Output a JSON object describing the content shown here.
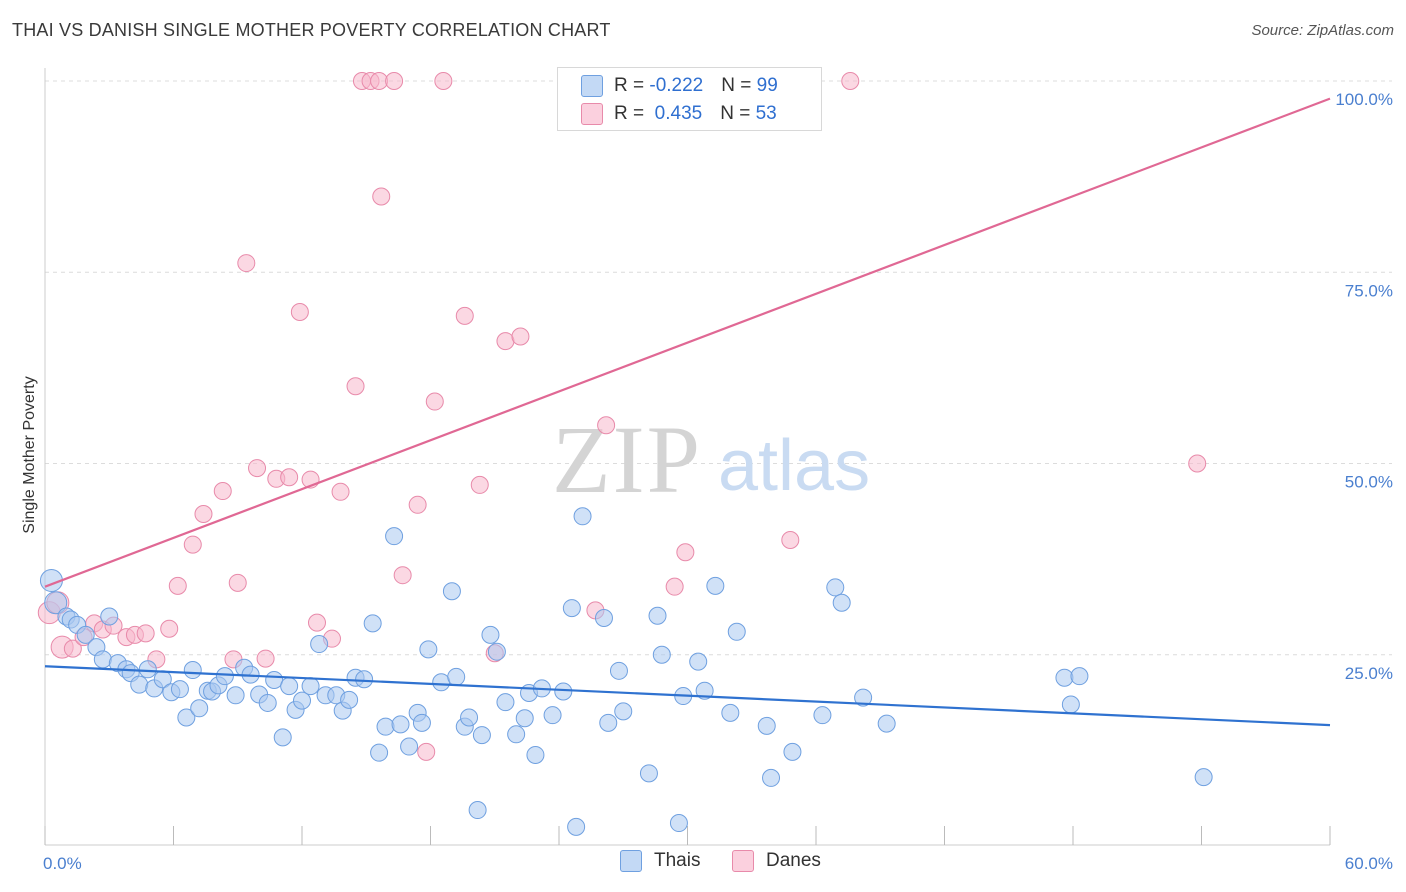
{
  "header": {
    "title": "THAI VS DANISH SINGLE MOTHER POVERTY CORRELATION CHART",
    "source": "Source: ZipAtlas.com"
  },
  "watermark": {
    "zip": "ZIP",
    "atlas": "atlas"
  },
  "legend": {
    "rows": [
      {
        "r_label": "R = ",
        "r_value": "-0.222",
        "n_label": "N = ",
        "n_value": "99",
        "color": "#a9c8f0"
      },
      {
        "r_label": "R = ",
        "r_value": " 0.435",
        "n_label": "N = ",
        "n_value": "53",
        "color": "#f7b8cc"
      }
    ]
  },
  "bottom_legend": {
    "thais": "Thais",
    "danes": "Danes"
  },
  "chart_data": {
    "type": "scatter",
    "title": "THAI VS DANISH SINGLE MOTHER POVERTY CORRELATION CHART",
    "xlabel": "",
    "ylabel": "Single Mother Poverty",
    "xlim": [
      0,
      60
    ],
    "ylim": [
      0,
      100
    ],
    "x_tick_labels": [
      "0.0%",
      "60.0%"
    ],
    "y_tick_labels": [
      "25.0%",
      "50.0%",
      "75.0%",
      "100.0%"
    ],
    "y_ticks": [
      25,
      50,
      75,
      100
    ],
    "grid": true,
    "legend_placement": "top-center",
    "series": [
      {
        "name": "Thais",
        "color": "#a9c8f0",
        "stroke": "#6fa0e0",
        "line_color": "#2f72d0",
        "trend": {
          "x": [
            0,
            60
          ],
          "y": [
            23.5,
            15.8
          ]
        },
        "points": [
          [
            0.3,
            34.7
          ],
          [
            0.5,
            31.8
          ],
          [
            1,
            30
          ],
          [
            1.2,
            29.6
          ],
          [
            1.5,
            28.9
          ],
          [
            1.9,
            27.6
          ],
          [
            2.4,
            26
          ],
          [
            2.7,
            24.4
          ],
          [
            3,
            30
          ],
          [
            3.4,
            23.9
          ],
          [
            3.8,
            23.1
          ],
          [
            4,
            22.6
          ],
          [
            4.4,
            21.1
          ],
          [
            4.8,
            23.1
          ],
          [
            5.1,
            20.6
          ],
          [
            5.5,
            21.8
          ],
          [
            5.9,
            20.1
          ],
          [
            6.3,
            20.5
          ],
          [
            6.6,
            16.8
          ],
          [
            6.9,
            23
          ],
          [
            7.2,
            18
          ],
          [
            7.6,
            20.3
          ],
          [
            7.8,
            20.2
          ],
          [
            8.1,
            21
          ],
          [
            8.4,
            22.2
          ],
          [
            8.9,
            19.7
          ],
          [
            9.3,
            23.3
          ],
          [
            9.6,
            22.4
          ],
          [
            10,
            19.8
          ],
          [
            10.4,
            18.7
          ],
          [
            10.7,
            21.7
          ],
          [
            11.1,
            14.2
          ],
          [
            11.4,
            20.9
          ],
          [
            11.7,
            17.8
          ],
          [
            12,
            19
          ],
          [
            12.4,
            20.9
          ],
          [
            12.8,
            26.4
          ],
          [
            13.1,
            19.7
          ],
          [
            13.6,
            19.7
          ],
          [
            13.9,
            17.7
          ],
          [
            14.2,
            19.1
          ],
          [
            14.5,
            22
          ],
          [
            14.9,
            21.8
          ],
          [
            15.3,
            29.1
          ],
          [
            15.6,
            12.2
          ],
          [
            15.9,
            15.6
          ],
          [
            16.3,
            40.5
          ],
          [
            16.6,
            15.9
          ],
          [
            17,
            13
          ],
          [
            17.4,
            17.4
          ],
          [
            17.6,
            16.1
          ],
          [
            17.9,
            25.7
          ],
          [
            18.5,
            21.4
          ],
          [
            19,
            33.3
          ],
          [
            19.2,
            22.1
          ],
          [
            19.6,
            15.6
          ],
          [
            19.8,
            16.8
          ],
          [
            20.2,
            4.7
          ],
          [
            20.4,
            14.5
          ],
          [
            20.8,
            27.6
          ],
          [
            21.1,
            25.4
          ],
          [
            21.5,
            18.8
          ],
          [
            22,
            14.6
          ],
          [
            22.4,
            16.7
          ],
          [
            22.6,
            20
          ],
          [
            22.9,
            11.9
          ],
          [
            23.2,
            20.6
          ],
          [
            23.7,
            17.1
          ],
          [
            24.2,
            20.2
          ],
          [
            24.6,
            31.1
          ],
          [
            24.8,
            2.5
          ],
          [
            25.1,
            43.1
          ],
          [
            26.1,
            29.8
          ],
          [
            26.3,
            16.1
          ],
          [
            26.8,
            22.9
          ],
          [
            27,
            17.6
          ],
          [
            28.2,
            9.5
          ],
          [
            28.6,
            30.1
          ],
          [
            28.8,
            25
          ],
          [
            29.6,
            3
          ],
          [
            29.8,
            19.6
          ],
          [
            30.5,
            24.1
          ],
          [
            30.8,
            20.3
          ],
          [
            31.3,
            34
          ],
          [
            32,
            17.4
          ],
          [
            32.3,
            28
          ],
          [
            33.7,
            15.7
          ],
          [
            33.9,
            8.9
          ],
          [
            34.9,
            12.3
          ],
          [
            36.3,
            17.1
          ],
          [
            36.9,
            33.8
          ],
          [
            37.2,
            31.8
          ],
          [
            38.2,
            19.4
          ],
          [
            39.3,
            16
          ],
          [
            47.6,
            22
          ],
          [
            47.9,
            18.5
          ],
          [
            48.3,
            22.2
          ],
          [
            54.1,
            9
          ]
        ]
      },
      {
        "name": "Danes",
        "color": "#f7b8cc",
        "stroke": "#e88aaa",
        "line_color": "#e06894",
        "trend": {
          "x": [
            0,
            60
          ],
          "y": [
            33.9,
            97.7
          ]
        },
        "points": [
          [
            0.2,
            30.5
          ],
          [
            0.6,
            31.8
          ],
          [
            0.8,
            26
          ],
          [
            1.3,
            25.8
          ],
          [
            1.8,
            27.3
          ],
          [
            2.3,
            29.1
          ],
          [
            2.7,
            28.3
          ],
          [
            3.2,
            28.8
          ],
          [
            3.8,
            27.3
          ],
          [
            4.2,
            27.6
          ],
          [
            4.7,
            27.8
          ],
          [
            5.2,
            24.4
          ],
          [
            5.8,
            28.4
          ],
          [
            6.2,
            34
          ],
          [
            6.9,
            39.4
          ],
          [
            7.4,
            43.4
          ],
          [
            8.3,
            46.4
          ],
          [
            8.8,
            24.4
          ],
          [
            9,
            34.4
          ],
          [
            9.4,
            76.2
          ],
          [
            9.9,
            49.4
          ],
          [
            10.3,
            24.5
          ],
          [
            10.8,
            48
          ],
          [
            11.4,
            48.2
          ],
          [
            11.9,
            69.8
          ],
          [
            12.4,
            47.9
          ],
          [
            12.7,
            29.2
          ],
          [
            13.4,
            27.1
          ],
          [
            13.8,
            46.3
          ],
          [
            14.5,
            60.1
          ],
          [
            14.8,
            100
          ],
          [
            15.2,
            100
          ],
          [
            15.6,
            100
          ],
          [
            15.7,
            84.9
          ],
          [
            16.3,
            100
          ],
          [
            16.7,
            35.4
          ],
          [
            17.4,
            44.6
          ],
          [
            17.8,
            12.3
          ],
          [
            18.2,
            58.1
          ],
          [
            18.6,
            100
          ],
          [
            19.6,
            69.3
          ],
          [
            20.3,
            47.2
          ],
          [
            21,
            25.2
          ],
          [
            21.5,
            66
          ],
          [
            22.2,
            66.6
          ],
          [
            25.7,
            30.8
          ],
          [
            26.2,
            55
          ],
          [
            28.9,
            100
          ],
          [
            29.4,
            33.9
          ],
          [
            29.9,
            38.4
          ],
          [
            34.8,
            40
          ],
          [
            37.6,
            100
          ],
          [
            53.8,
            50
          ]
        ]
      }
    ]
  }
}
